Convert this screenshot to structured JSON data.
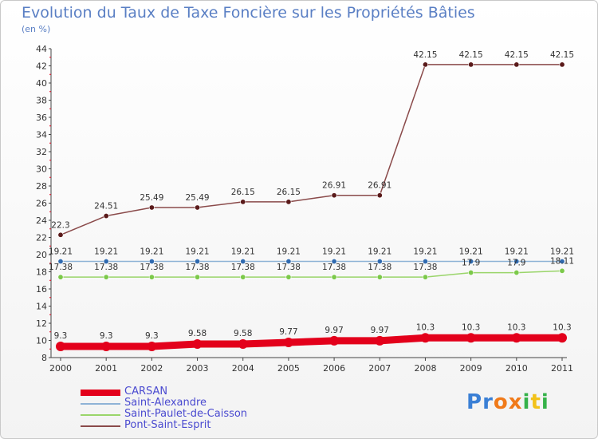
{
  "header": {
    "title": "Evolution du Taux de Taxe Foncière sur les Propriétés Bâties",
    "unit": "(en %)"
  },
  "logo": {
    "text": "Proxiti",
    "letter_colors": [
      "#3a7fd5",
      "#3a7fd5",
      "#f07a1a",
      "#f07a1a",
      "#36b24a",
      "#f2c21a",
      "#36b24a"
    ]
  },
  "chart_data": {
    "type": "line",
    "title": "Evolution du Taux de Taxe Foncière sur les Propriétés Bâties",
    "ylabel": "(en %)",
    "xlabel": "",
    "ylim": [
      8,
      44
    ],
    "yticks": [
      8,
      10,
      12,
      14,
      16,
      18,
      20,
      22,
      24,
      26,
      28,
      30,
      32,
      34,
      36,
      38,
      40,
      42,
      44
    ],
    "categories": [
      "2000",
      "2001",
      "2002",
      "2003",
      "2004",
      "2005",
      "2006",
      "2007",
      "2008",
      "2009",
      "2010",
      "2011"
    ],
    "series": [
      {
        "name": "CARSAN",
        "color": "#e3001b",
        "marker": "#e3001b",
        "values": [
          9.3,
          9.3,
          9.3,
          9.58,
          9.58,
          9.77,
          9.97,
          9.97,
          10.3,
          10.3,
          10.3,
          10.3
        ],
        "labels": [
          "9.3",
          "9.3",
          "9.3",
          "9.58",
          "9.58",
          "9.77",
          "9.97",
          "9.97",
          "10.3",
          "10.3",
          "10.3",
          "10.3"
        ]
      },
      {
        "name": "Saint-Alexandre",
        "color": "#8fb3d6",
        "marker": "#2f6ab0",
        "values": [
          19.21,
          19.21,
          19.21,
          19.21,
          19.21,
          19.21,
          19.21,
          19.21,
          19.21,
          19.21,
          19.21,
          19.21
        ],
        "labels": [
          "19.21",
          "19.21",
          "19.21",
          "19.21",
          "19.21",
          "19.21",
          "19.21",
          "19.21",
          "19.21",
          "19.21",
          "19.21",
          "19.21"
        ]
      },
      {
        "name": "Saint-Paulet-de-Caisson",
        "color": "#9ad56a",
        "marker": "#7cc94a",
        "values": [
          17.38,
          17.38,
          17.38,
          17.38,
          17.38,
          17.38,
          17.38,
          17.38,
          17.38,
          17.9,
          17.9,
          18.11
        ],
        "labels": [
          "17.38",
          "17.38",
          "17.38",
          "17.38",
          "17.38",
          "17.38",
          "17.38",
          "17.38",
          "17.38",
          "17.9",
          "17.9",
          "18.11"
        ]
      },
      {
        "name": "Pont-Saint-Esprit",
        "color": "#8a4a4a",
        "marker": "#5a1a1a",
        "values": [
          22.3,
          24.51,
          25.49,
          25.49,
          26.15,
          26.15,
          26.91,
          26.91,
          42.15,
          42.15,
          42.15,
          42.15
        ],
        "labels": [
          "22.3",
          "24.51",
          "25.49",
          "25.49",
          "26.15",
          "26.15",
          "26.91",
          "26.91",
          "42.15",
          "42.15",
          "42.15",
          "42.15"
        ]
      }
    ],
    "legend_position": "bottom-left"
  }
}
